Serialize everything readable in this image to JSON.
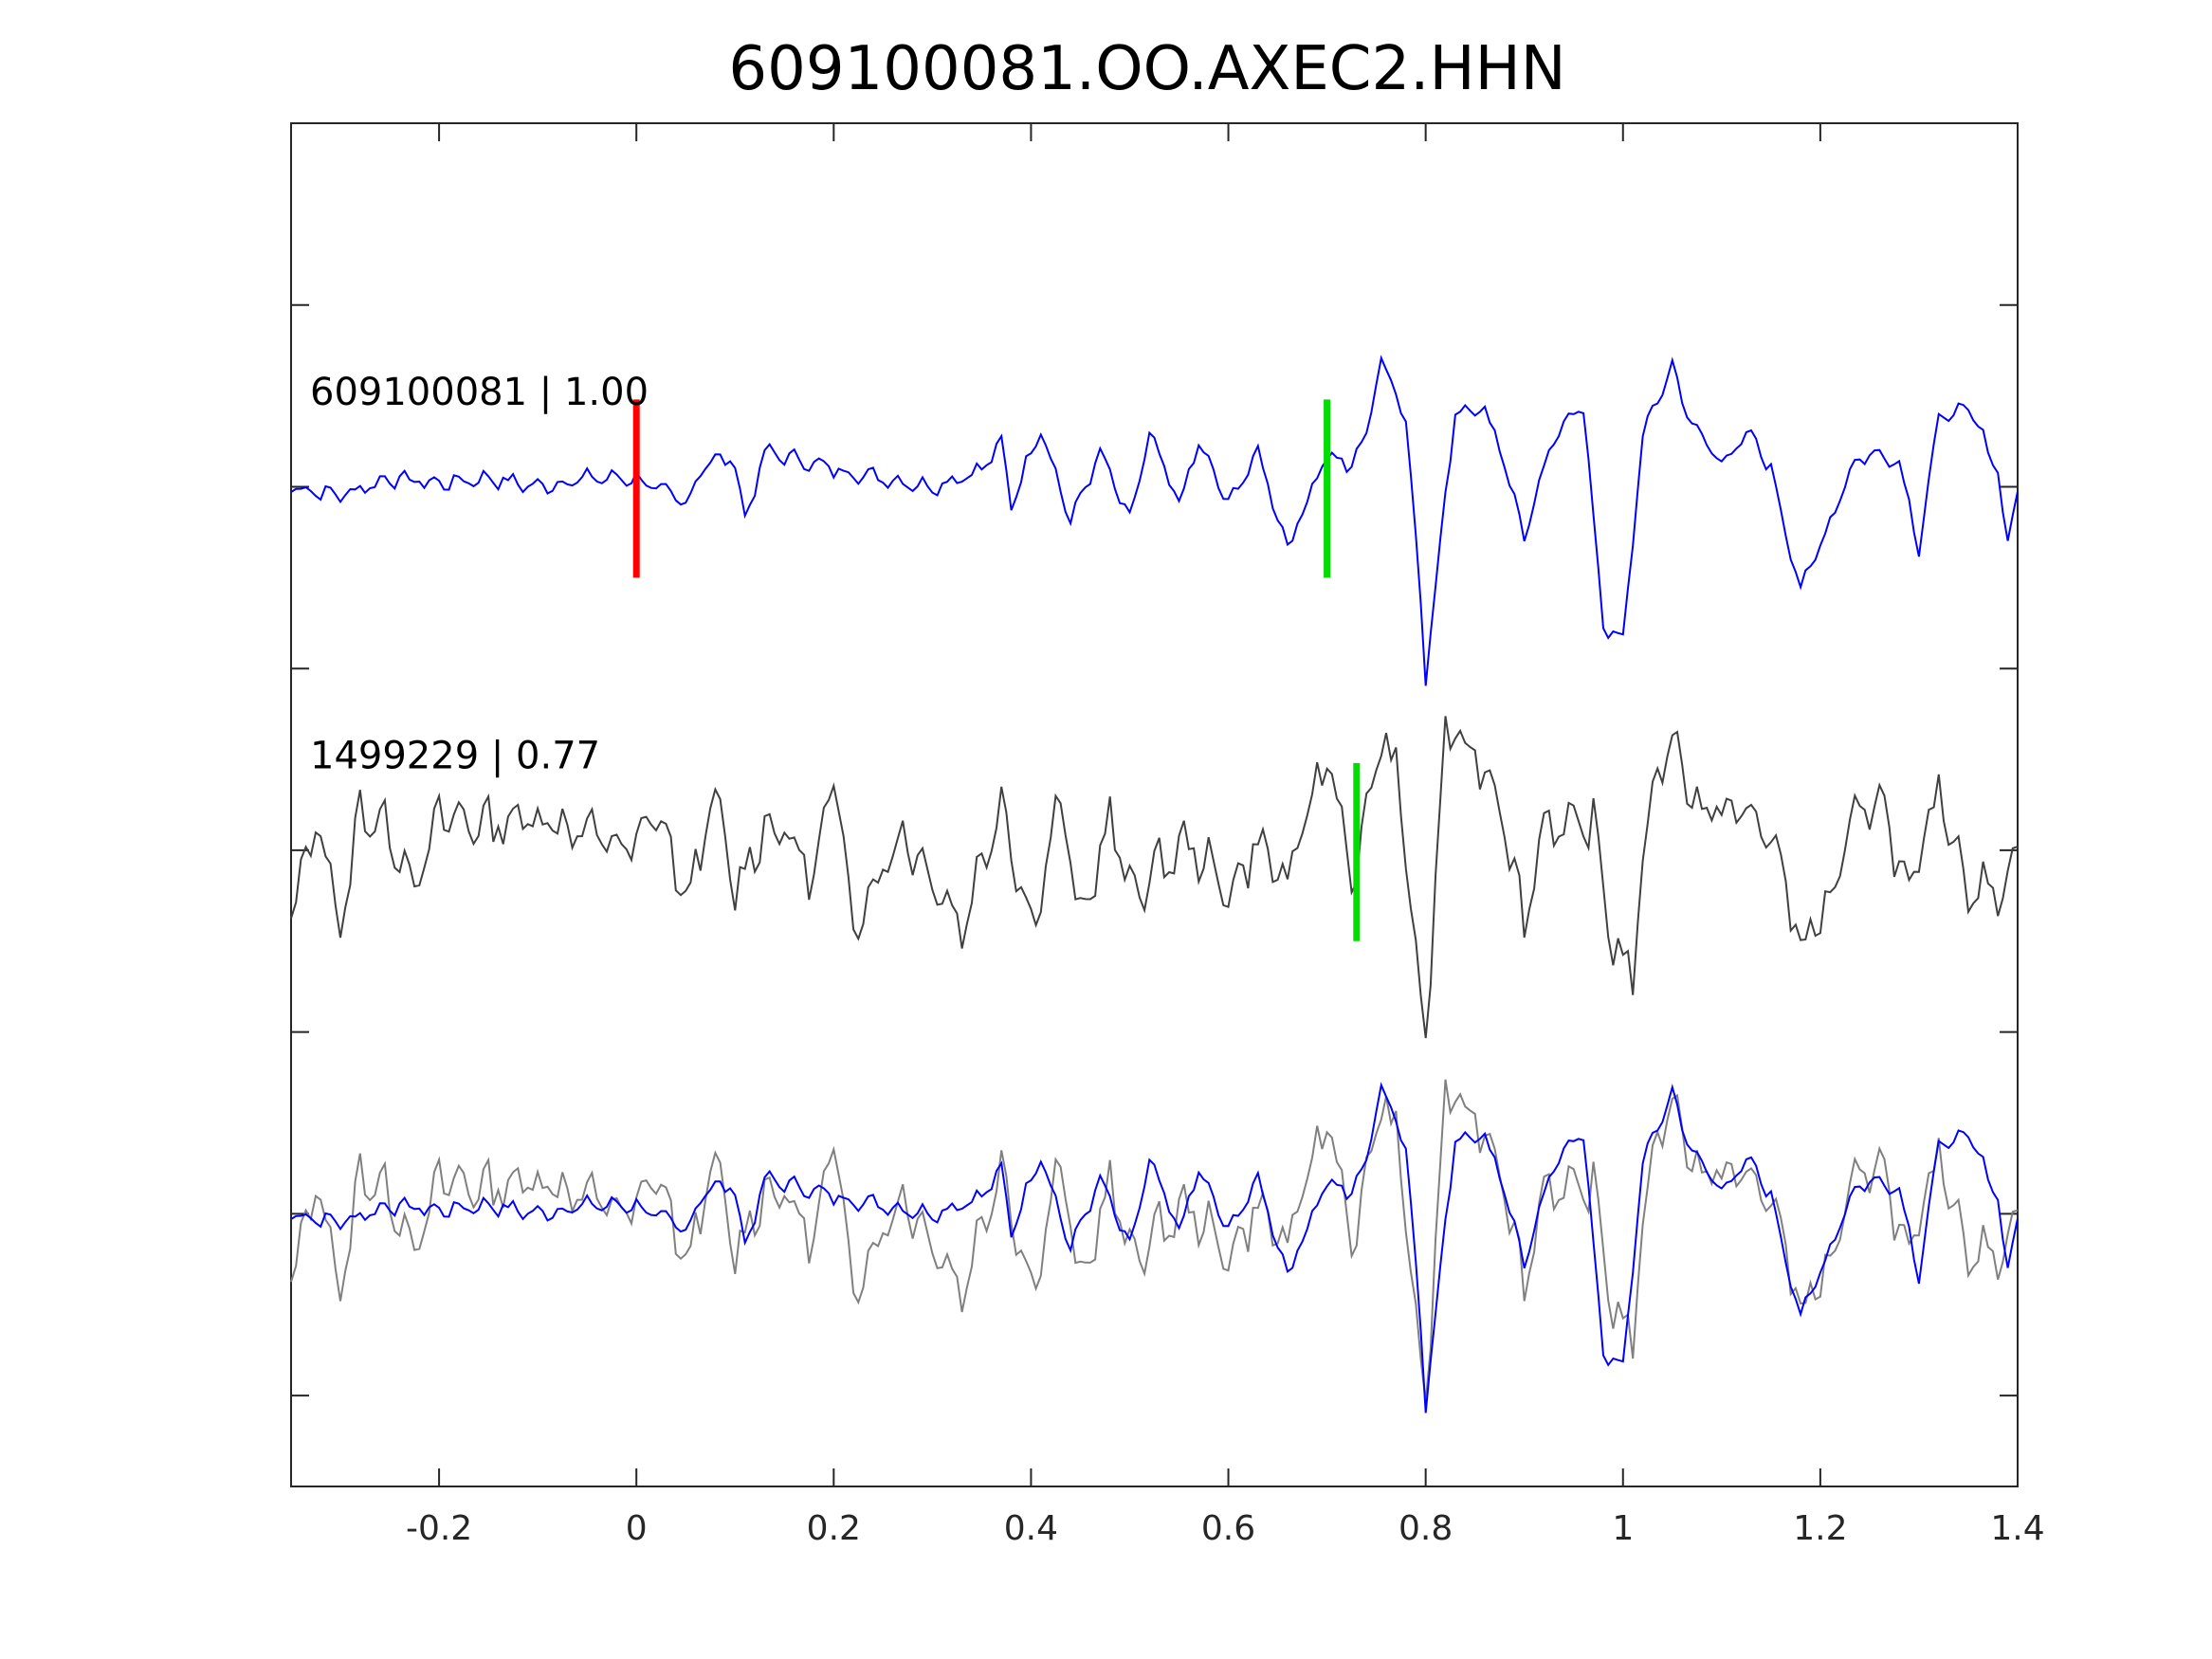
{
  "chart_data": {
    "type": "line",
    "title": "609100081.OO.AXEC2.HHN",
    "xlabel": "",
    "ylabel": "",
    "xlim": [
      -0.35,
      1.4
    ],
    "ylim": [
      -3.5,
      4.0
    ],
    "xticks": [
      -0.2,
      0,
      0.2,
      0.4,
      0.6,
      0.8,
      1,
      1.2,
      1.4
    ],
    "xtick_labels": [
      "-0.2",
      "0",
      "0.2",
      "0.4",
      "0.6",
      "0.8",
      "1",
      "1.2",
      "1.4"
    ],
    "yticks": [
      3,
      2,
      1,
      0,
      -1,
      -2,
      -3
    ],
    "grid": false,
    "traces": [
      {
        "label": "609100081 | 1.00",
        "label_event": "609100081",
        "label_cc": "1.00",
        "color": "#0000ff",
        "offset": 2
      },
      {
        "label": "1499229 | 0.77",
        "label_event": "1499229",
        "label_cc": "0.77",
        "color": "#404040",
        "offset": 0
      }
    ],
    "overlay": {
      "offset": -2,
      "colors": [
        "#808080",
        "#0000ff"
      ]
    },
    "markers": [
      {
        "trace": 0,
        "x": 0.0,
        "color": "#ff0000"
      },
      {
        "trace": 0,
        "x": 0.7,
        "color": "#00dd00"
      },
      {
        "trace": 1,
        "x": 0.73,
        "color": "#00dd00"
      }
    ],
    "waveform_keypoints": {
      "dt": 0.005,
      "reference_blue": [
        [
          -0.35,
          0.0
        ],
        [
          -0.3,
          -0.05
        ],
        [
          -0.25,
          0.05
        ],
        [
          -0.2,
          0.02
        ],
        [
          -0.15,
          0.05
        ],
        [
          -0.1,
          0.0
        ],
        [
          -0.05,
          0.05
        ],
        [
          0.0,
          0.05
        ],
        [
          0.05,
          -0.1
        ],
        [
          0.07,
          0.15
        ],
        [
          0.1,
          0.15
        ],
        [
          0.11,
          -0.2
        ],
        [
          0.13,
          0.2
        ],
        [
          0.17,
          0.15
        ],
        [
          0.2,
          0.1
        ],
        [
          0.25,
          0.05
        ],
        [
          0.3,
          0.0
        ],
        [
          0.35,
          0.1
        ],
        [
          0.37,
          0.25
        ],
        [
          0.38,
          -0.1
        ],
        [
          0.41,
          0.35
        ],
        [
          0.44,
          -0.2
        ],
        [
          0.47,
          0.2
        ],
        [
          0.5,
          -0.2
        ],
        [
          0.52,
          0.3
        ],
        [
          0.55,
          -0.1
        ],
        [
          0.57,
          0.25
        ],
        [
          0.6,
          -0.1
        ],
        [
          0.63,
          0.2
        ],
        [
          0.66,
          -0.35
        ],
        [
          0.7,
          0.2
        ],
        [
          0.72,
          0.1
        ],
        [
          0.74,
          0.3
        ],
        [
          0.755,
          0.75
        ],
        [
          0.78,
          0.4
        ],
        [
          0.8,
          -1.0
        ],
        [
          0.8,
          -1.1
        ],
        [
          0.83,
          0.45
        ],
        [
          0.84,
          0.45
        ],
        [
          0.86,
          0.45
        ],
        [
          0.88,
          0.15
        ],
        [
          0.9,
          -0.3
        ],
        [
          0.92,
          0.1
        ],
        [
          0.94,
          0.4
        ],
        [
          0.96,
          0.45
        ],
        [
          0.98,
          -0.8
        ],
        [
          1.0,
          -0.9
        ],
        [
          1.02,
          0.3
        ],
        [
          1.05,
          0.7
        ],
        [
          1.07,
          0.35
        ],
        [
          1.1,
          0.15
        ],
        [
          1.13,
          0.3
        ],
        [
          1.15,
          0.1
        ],
        [
          1.18,
          -0.6
        ],
        [
          1.21,
          -0.2
        ],
        [
          1.23,
          0.1
        ],
        [
          1.25,
          0.2
        ],
        [
          1.28,
          0.15
        ],
        [
          1.3,
          -0.35
        ],
        [
          1.32,
          0.4
        ],
        [
          1.35,
          0.45
        ],
        [
          1.38,
          0.1
        ],
        [
          1.39,
          -0.35
        ],
        [
          1.4,
          0.0
        ]
      ],
      "template_gray": [
        [
          -0.35,
          -0.35
        ],
        [
          -0.32,
          0.2
        ],
        [
          -0.3,
          -0.5
        ],
        [
          -0.28,
          0.25
        ],
        [
          -0.25,
          0.1
        ],
        [
          -0.22,
          -0.2
        ],
        [
          -0.2,
          0.2
        ],
        [
          -0.15,
          0.15
        ],
        [
          -0.1,
          0.2
        ],
        [
          -0.05,
          0.1
        ],
        [
          0.0,
          0.0
        ],
        [
          0.02,
          0.25
        ],
        [
          0.05,
          -0.3
        ],
        [
          0.08,
          0.3
        ],
        [
          0.1,
          -0.25
        ],
        [
          0.13,
          0.15
        ],
        [
          0.15,
          0.1
        ],
        [
          0.18,
          -0.15
        ],
        [
          0.2,
          0.4
        ],
        [
          0.22,
          -0.4
        ],
        [
          0.25,
          -0.1
        ],
        [
          0.27,
          0.1
        ],
        [
          0.3,
          -0.15
        ],
        [
          0.33,
          -0.45
        ],
        [
          0.37,
          0.3
        ],
        [
          0.4,
          -0.45
        ],
        [
          0.43,
          0.3
        ],
        [
          0.45,
          -0.45
        ],
        [
          0.48,
          0.2
        ],
        [
          0.5,
          -0.25
        ],
        [
          0.53,
          -0.1
        ],
        [
          0.56,
          0.05
        ],
        [
          0.6,
          -0.25
        ],
        [
          0.63,
          0.05
        ],
        [
          0.66,
          -0.2
        ],
        [
          0.69,
          0.4
        ],
        [
          0.7,
          0.55
        ],
        [
          0.73,
          -0.2
        ],
        [
          0.75,
          0.6
        ],
        [
          0.77,
          0.5
        ],
        [
          0.79,
          -0.6
        ],
        [
          0.8,
          -1.1
        ],
        [
          0.82,
          0.7
        ],
        [
          0.84,
          0.6
        ],
        [
          0.86,
          0.5
        ],
        [
          0.88,
          0.2
        ],
        [
          0.9,
          -0.45
        ],
        [
          0.92,
          0.2
        ],
        [
          0.94,
          0.1
        ],
        [
          0.97,
          0.15
        ],
        [
          0.99,
          -0.55
        ],
        [
          1.01,
          -0.7
        ],
        [
          1.03,
          0.4
        ],
        [
          1.05,
          0.65
        ],
        [
          1.08,
          0.2
        ],
        [
          1.11,
          0.25
        ],
        [
          1.15,
          0.1
        ],
        [
          1.18,
          -0.55
        ],
        [
          1.21,
          -0.3
        ],
        [
          1.23,
          0.1
        ],
        [
          1.26,
          0.35
        ],
        [
          1.29,
          -0.3
        ],
        [
          1.32,
          0.35
        ],
        [
          1.35,
          -0.2
        ],
        [
          1.38,
          -0.25
        ],
        [
          1.4,
          0.0
        ]
      ]
    }
  }
}
